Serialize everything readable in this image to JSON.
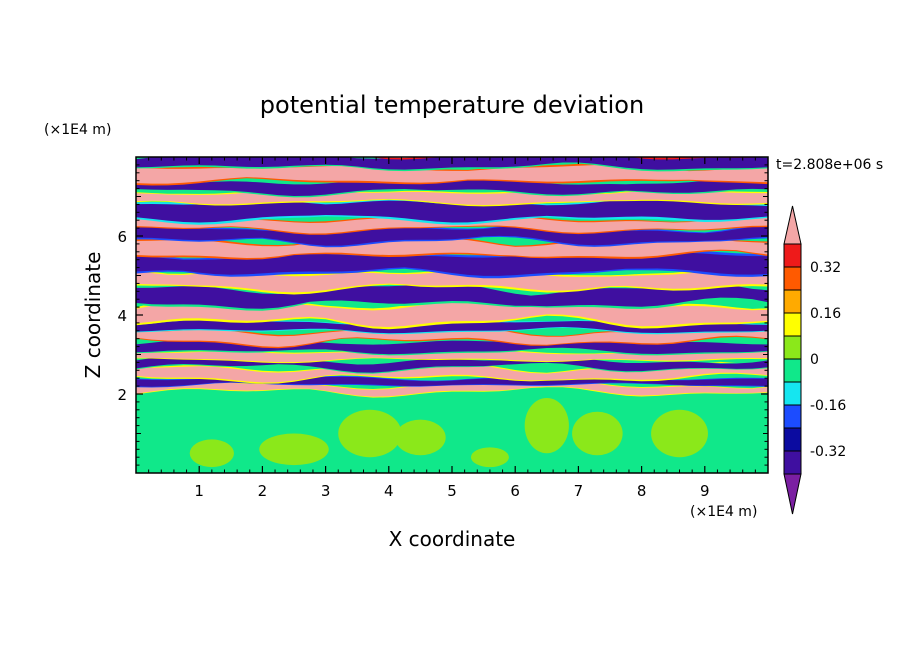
{
  "chart_data": {
    "type": "heatmap",
    "title": "potential temperature deviation",
    "xlabel": "X coordinate",
    "ylabel": "Z coordinate",
    "x_unit": "(×1E4 m)",
    "y_unit": "(×1E4 m)",
    "time_label": "t=2.808e+06 s",
    "xlim": [
      0,
      10
    ],
    "ylim": [
      0,
      8
    ],
    "x_ticks": [
      1,
      2,
      3,
      4,
      5,
      6,
      7,
      8,
      9
    ],
    "y_ticks": [
      2,
      4,
      6
    ],
    "colorbar": {
      "levels": [
        -0.4,
        -0.32,
        -0.24,
        -0.16,
        -0.08,
        0,
        0.08,
        0.16,
        0.24,
        0.32,
        0.4
      ],
      "colors": [
        "#7b1fa2",
        "#3f0fa0",
        "#0b0ba0",
        "#1c4cff",
        "#15e6f0",
        "#10e88a",
        "#8be81a",
        "#ffff00",
        "#ffaa00",
        "#ff5a00",
        "#ee1a1a",
        "#f4a6a6"
      ],
      "labels": [
        "0.32",
        "0.16",
        "0",
        "-0.16",
        "-0.32"
      ],
      "label_values": [
        0.32,
        0.16,
        0,
        -0.16,
        -0.32
      ],
      "extend": "both"
    },
    "field_description": "Lower layer (Z below ~2) near zero (-0.08 to 0.08) with patches 0 to 0.08; upper layer (Z ~2 to 8) shows alternating horizontal bands of strong positive (>0.4) and strong negative (<-0.4) deviation with thin intermediate-value edges."
  }
}
